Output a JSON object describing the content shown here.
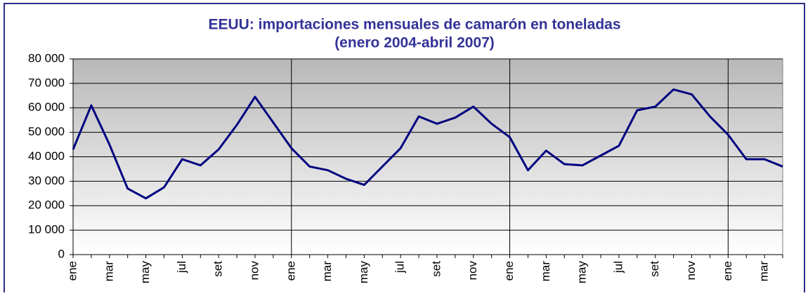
{
  "chart_data": {
    "type": "line",
    "title": "EEUU: importaciones mensuales de camarón en toneladas",
    "subtitle": "(enero 2004-abril 2007)",
    "categories": [
      "ene",
      null,
      "mar",
      null,
      "may",
      null,
      "jul",
      null,
      "set",
      null,
      "nov",
      null,
      "ene",
      null,
      "mar",
      null,
      "may",
      null,
      "jul",
      null,
      "set",
      null,
      "nov",
      null,
      "ene",
      null,
      "mar",
      null,
      "may",
      null,
      "jul",
      null,
      "set",
      null,
      "nov",
      null,
      "ene",
      null,
      "mar",
      null
    ],
    "series": [
      {
        "color": "#000080",
        "values": [
          43000,
          61000,
          45000,
          27000,
          23000,
          27500,
          39000,
          36500,
          43000,
          53000,
          64500,
          54000,
          43500,
          36000,
          34500,
          31000,
          28500,
          36000,
          43500,
          56500,
          53500,
          56000,
          60500,
          53500,
          48000,
          34500,
          42500,
          37000,
          36500,
          40500,
          44500,
          59000,
          60500,
          67500,
          65500,
          56500,
          49000,
          39000,
          39000,
          36000
        ]
      }
    ],
    "ylim": [
      0,
      80000
    ],
    "yticks": [
      0,
      {
        "value": 10000,
        "label": "10 000"
      },
      {
        "value": 20000,
        "label": "20 000"
      },
      {
        "value": 30000,
        "label": "30 000"
      },
      {
        "value": 40000,
        "label": "40 000"
      },
      {
        "value": 50000,
        "label": "50 000"
      },
      {
        "value": 60000,
        "label": "60 000"
      },
      {
        "value": 70000,
        "label": "70 000"
      },
      {
        "value": 80000,
        "label": "80 000"
      }
    ],
    "grid": true
  }
}
